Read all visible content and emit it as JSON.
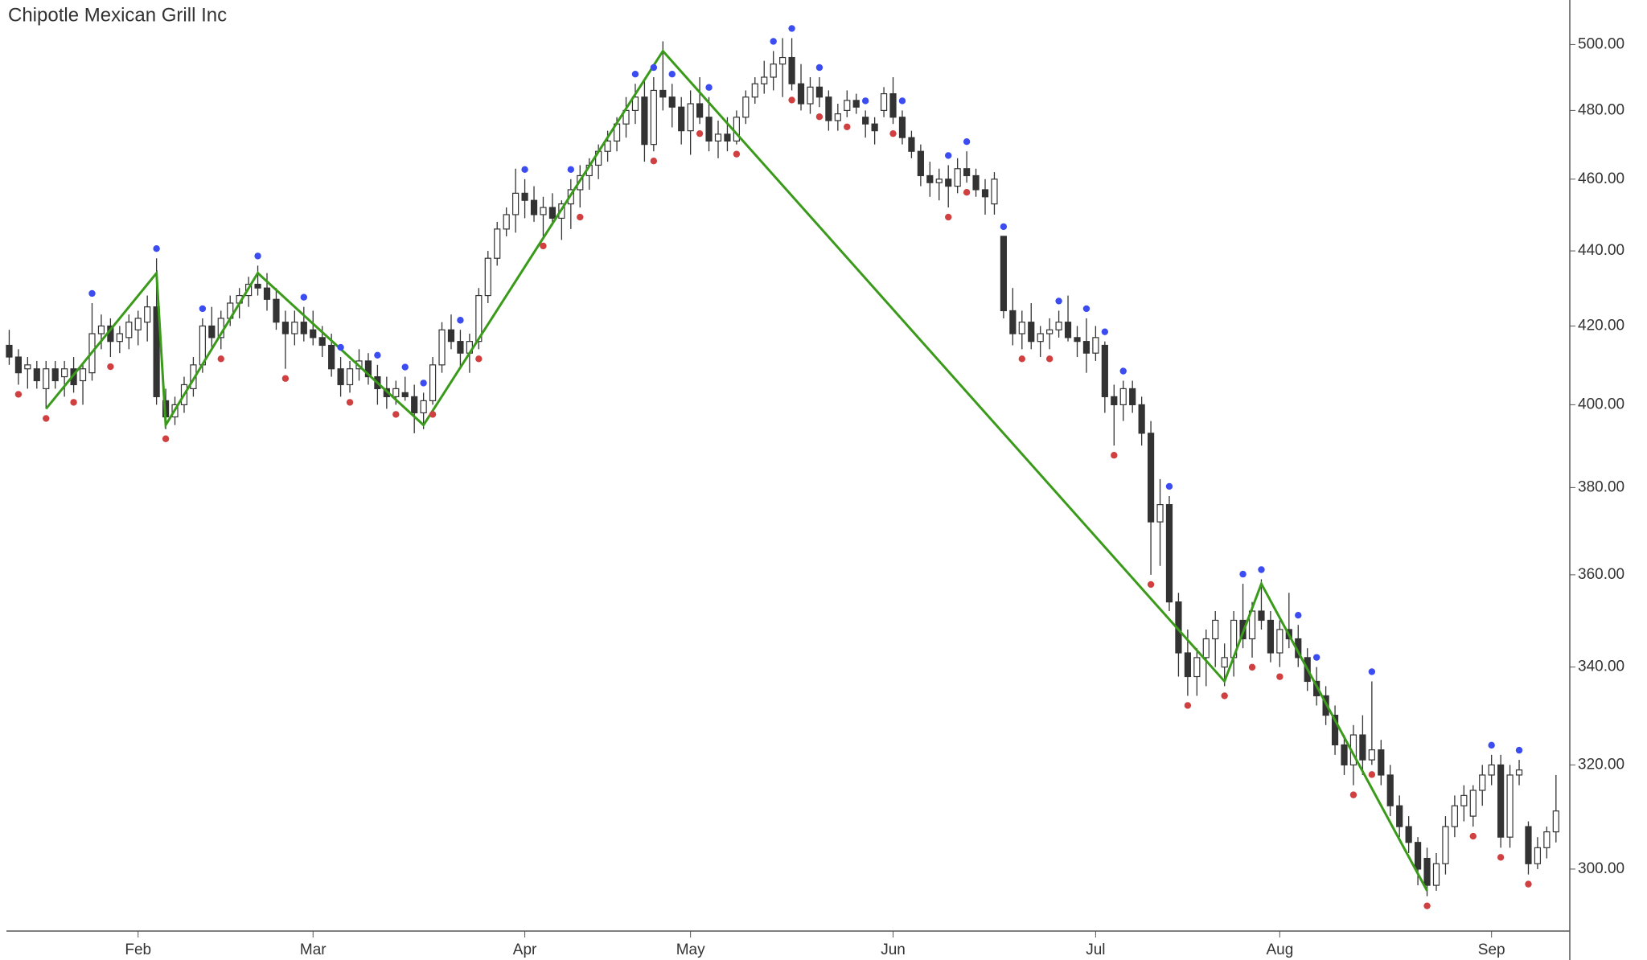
{
  "chart_data": {
    "type": "candlestick",
    "title": "Chipotle Mexican Grill Inc",
    "log_scale": true,
    "ylim": [
      288.7,
      514
    ],
    "yticks": [
      {
        "value": 300,
        "label": "300.00"
      },
      {
        "value": 320,
        "label": "320.00"
      },
      {
        "value": 340,
        "label": "340.00"
      },
      {
        "value": 360,
        "label": "360.00"
      },
      {
        "value": 380,
        "label": "380.00"
      },
      {
        "value": 400,
        "label": "400.00"
      },
      {
        "value": 420,
        "label": "420.00"
      },
      {
        "value": 440,
        "label": "440.00"
      },
      {
        "value": 460,
        "label": "460.00"
      },
      {
        "value": 480,
        "label": "480.00"
      },
      {
        "value": 500,
        "label": "500.00"
      }
    ],
    "xlim": [
      -1,
      169.5
    ],
    "xticks": [
      {
        "value": 14,
        "label": "Feb"
      },
      {
        "value": 33,
        "label": "Mar"
      },
      {
        "value": 56,
        "label": "Apr"
      },
      {
        "value": 74,
        "label": "May"
      },
      {
        "value": 96,
        "label": "Jun"
      },
      {
        "value": 118,
        "label": "Jul"
      },
      {
        "value": 138,
        "label": "Aug"
      },
      {
        "value": 161,
        "label": "Sep"
      }
    ],
    "up_color": "#ffffff",
    "down_color": "#333333",
    "candles": [
      [
        415,
        419,
        410,
        412
      ],
      [
        412,
        414,
        405,
        408
      ],
      [
        409,
        412,
        404,
        410
      ],
      [
        409,
        411,
        404,
        406
      ],
      [
        404,
        411,
        399,
        409
      ],
      [
        409,
        411,
        404,
        406
      ],
      [
        407,
        411,
        402,
        409
      ],
      [
        409,
        412,
        403,
        405
      ],
      [
        406,
        410,
        400,
        409
      ],
      [
        408,
        426,
        406,
        418
      ],
      [
        418,
        423,
        414,
        420
      ],
      [
        420,
        422,
        412,
        416
      ],
      [
        416,
        420,
        413,
        418
      ],
      [
        417,
        423,
        414,
        421
      ],
      [
        419,
        424,
        415,
        422
      ],
      [
        421,
        428,
        416,
        425
      ],
      [
        425,
        438,
        400,
        402
      ],
      [
        401,
        404,
        394,
        397
      ],
      [
        397,
        402,
        395,
        400
      ],
      [
        400,
        407,
        398,
        405
      ],
      [
        404,
        412,
        402,
        410
      ],
      [
        410,
        422,
        408,
        420
      ],
      [
        420,
        425,
        414,
        417
      ],
      [
        417,
        424,
        414,
        422
      ],
      [
        422,
        428,
        420,
        426
      ],
      [
        426,
        430,
        422,
        428
      ],
      [
        428,
        433,
        425,
        431
      ],
      [
        431,
        436,
        428,
        430
      ],
      [
        430,
        434,
        424,
        427
      ],
      [
        427,
        430,
        419,
        421
      ],
      [
        421,
        424,
        409,
        418
      ],
      [
        418,
        424,
        415,
        421
      ],
      [
        421,
        425,
        416,
        418
      ],
      [
        419,
        424,
        415,
        417
      ],
      [
        417,
        420,
        412,
        415
      ],
      [
        415,
        418,
        407,
        409
      ],
      [
        409,
        412,
        402,
        405
      ],
      [
        405,
        411,
        403,
        409
      ],
      [
        409,
        414,
        406,
        411
      ],
      [
        411,
        413,
        405,
        407
      ],
      [
        407,
        410,
        400,
        404
      ],
      [
        404,
        407,
        399,
        402
      ],
      [
        402,
        406,
        400,
        404
      ],
      [
        403,
        407,
        401,
        402
      ],
      [
        402,
        405,
        393,
        398
      ],
      [
        398,
        403,
        394,
        401
      ],
      [
        401,
        412,
        400,
        410
      ],
      [
        410,
        421,
        408,
        419
      ],
      [
        419,
        423,
        414,
        416
      ],
      [
        416,
        419,
        409,
        413
      ],
      [
        413,
        418,
        408,
        416
      ],
      [
        416,
        430,
        414,
        428
      ],
      [
        428,
        440,
        426,
        438
      ],
      [
        438,
        448,
        436,
        446
      ],
      [
        446,
        452,
        444,
        450
      ],
      [
        450,
        463,
        445,
        456
      ],
      [
        456,
        460,
        449,
        454
      ],
      [
        454,
        458,
        448,
        450
      ],
      [
        450,
        455,
        444,
        452
      ],
      [
        452,
        456,
        447,
        449
      ],
      [
        449,
        454,
        443,
        453
      ],
      [
        453,
        460,
        446,
        457
      ],
      [
        457,
        464,
        452,
        461
      ],
      [
        461,
        466,
        457,
        464
      ],
      [
        464,
        470,
        460,
        468
      ],
      [
        468,
        474,
        465,
        471
      ],
      [
        471,
        478,
        468,
        476
      ],
      [
        476,
        484,
        472,
        480
      ],
      [
        480,
        488,
        476,
        484
      ],
      [
        484,
        489,
        465,
        470
      ],
      [
        470,
        490,
        468,
        486
      ],
      [
        486,
        501,
        480,
        484
      ],
      [
        484,
        488,
        475,
        481
      ],
      [
        481,
        484,
        470,
        474
      ],
      [
        474,
        486,
        467,
        482
      ],
      [
        482,
        490,
        476,
        478
      ],
      [
        478,
        484,
        468,
        471
      ],
      [
        471,
        477,
        466,
        473
      ],
      [
        473,
        478,
        468,
        471
      ],
      [
        471,
        480,
        470,
        478
      ],
      [
        478,
        486,
        476,
        484
      ],
      [
        484,
        490,
        482,
        488
      ],
      [
        488,
        495,
        485,
        490
      ],
      [
        490,
        498,
        486,
        494
      ],
      [
        494,
        502,
        484,
        496
      ],
      [
        496,
        502,
        486,
        488
      ],
      [
        488,
        494,
        480,
        482
      ],
      [
        482,
        490,
        479,
        487
      ],
      [
        487,
        490,
        481,
        484
      ],
      [
        484,
        486,
        474,
        477
      ],
      [
        477,
        482,
        474,
        479
      ],
      [
        480,
        486,
        478,
        483
      ],
      [
        483,
        485,
        479,
        481
      ],
      [
        478,
        480,
        472,
        476
      ],
      [
        476,
        478,
        470,
        474
      ],
      [
        480,
        487,
        478,
        485
      ],
      [
        485,
        490,
        476,
        478
      ],
      [
        478,
        480,
        470,
        472
      ],
      [
        472,
        474,
        466,
        468
      ],
      [
        468,
        470,
        458,
        461
      ],
      [
        461,
        465,
        455,
        459
      ],
      [
        459,
        463,
        454,
        460
      ],
      [
        460,
        464,
        452,
        458
      ],
      [
        458,
        466,
        456,
        463
      ],
      [
        463,
        468,
        459,
        461
      ],
      [
        461,
        463,
        455,
        457
      ],
      [
        457,
        460,
        450,
        455
      ],
      [
        453,
        462,
        450,
        460
      ],
      [
        444,
        444,
        422,
        424
      ],
      [
        424,
        430,
        415,
        418
      ],
      [
        418,
        424,
        414,
        421
      ],
      [
        421,
        426,
        414,
        416
      ],
      [
        416,
        420,
        412,
        418
      ],
      [
        418,
        422,
        414,
        419
      ],
      [
        419,
        424,
        417,
        421
      ],
      [
        421,
        428,
        416,
        417
      ],
      [
        417,
        420,
        412,
        416
      ],
      [
        416,
        422,
        408,
        413
      ],
      [
        413,
        420,
        411,
        417
      ],
      [
        415,
        416,
        398,
        402
      ],
      [
        402,
        405,
        390,
        400
      ],
      [
        400,
        406,
        396,
        404
      ],
      [
        404,
        406,
        398,
        400
      ],
      [
        400,
        402,
        390,
        393
      ],
      [
        393,
        396,
        360,
        372
      ],
      [
        372,
        382,
        362,
        376
      ],
      [
        376,
        378,
        352,
        354
      ],
      [
        354,
        356,
        338,
        343
      ],
      [
        343,
        348,
        334,
        338
      ],
      [
        338,
        344,
        334,
        342
      ],
      [
        342,
        348,
        336,
        346
      ],
      [
        346,
        352,
        340,
        350
      ],
      [
        340,
        345,
        336,
        342
      ],
      [
        342,
        352,
        338,
        350
      ],
      [
        350,
        358,
        344,
        346
      ],
      [
        346,
        354,
        342,
        352
      ],
      [
        352,
        359,
        348,
        350
      ],
      [
        350,
        352,
        341,
        343
      ],
      [
        343,
        350,
        340,
        348
      ],
      [
        348,
        356,
        344,
        346
      ],
      [
        346,
        349,
        340,
        342
      ],
      [
        342,
        344,
        335,
        337
      ],
      [
        337,
        340,
        332,
        334
      ],
      [
        334,
        336,
        328,
        330
      ],
      [
        330,
        332,
        322,
        324
      ],
      [
        324,
        326,
        318,
        320
      ],
      [
        320,
        328,
        316,
        326
      ],
      [
        326,
        330,
        318,
        321
      ],
      [
        321,
        337,
        320,
        323
      ],
      [
        323,
        325,
        316,
        318
      ],
      [
        318,
        320,
        310,
        312
      ],
      [
        312,
        314,
        306,
        308
      ],
      [
        308,
        310,
        303,
        305
      ],
      [
        305,
        306,
        297,
        300
      ],
      [
        302,
        304,
        295,
        297
      ],
      [
        297,
        303,
        296,
        301
      ],
      [
        301,
        310,
        299,
        308
      ],
      [
        308,
        314,
        306,
        312
      ],
      [
        312,
        316,
        309,
        314
      ],
      [
        310,
        316,
        308,
        315
      ],
      [
        315,
        320,
        312,
        318
      ],
      [
        318,
        322,
        316,
        320
      ],
      [
        320,
        322,
        304,
        306
      ],
      [
        306,
        320,
        304,
        318
      ],
      [
        318,
        321,
        316,
        319
      ],
      [
        308,
        309,
        299,
        301
      ],
      [
        301,
        306,
        300,
        304
      ],
      [
        304,
        308,
        302,
        307
      ],
      [
        307,
        318,
        305,
        311
      ]
    ],
    "high_markers": {
      "color": "#3b4cf0",
      "indices": [
        9,
        16,
        21,
        27,
        32,
        36,
        40,
        43,
        45,
        49,
        56,
        61,
        68,
        70,
        72,
        76,
        83,
        85,
        88,
        93,
        97,
        102,
        104,
        108,
        114,
        117,
        119,
        121,
        126,
        134,
        136,
        140,
        142,
        148,
        161,
        164
      ]
    },
    "low_markers": {
      "color": "#d04040",
      "indices": [
        1,
        4,
        7,
        11,
        17,
        23,
        30,
        37,
        42,
        46,
        51,
        58,
        62,
        70,
        75,
        79,
        85,
        88,
        91,
        96,
        102,
        104,
        110,
        113,
        120,
        124,
        128,
        132,
        135,
        138,
        146,
        148,
        154,
        159,
        162,
        165
      ]
    },
    "zigzag": {
      "color": "#3a9a1a",
      "x": [
        4,
        16,
        17,
        27,
        45,
        71,
        132,
        136,
        154
      ],
      "values": [
        399,
        434,
        395,
        434,
        395,
        498,
        337,
        358,
        296
      ]
    }
  }
}
